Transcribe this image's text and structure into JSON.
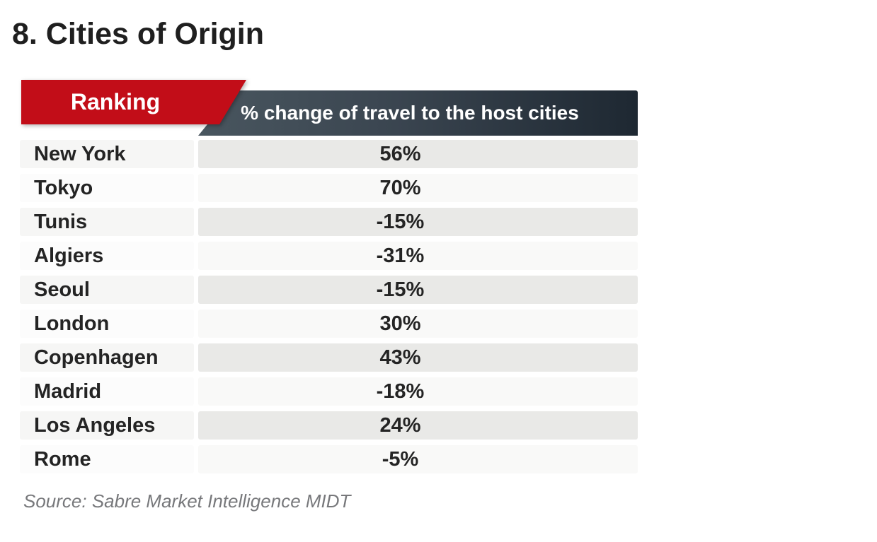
{
  "page": {
    "title": "8. Cities of Origin",
    "source": "Source: Sabre Market Intelligence MIDT"
  },
  "table": {
    "ranking_header": "Ranking",
    "value_header": "% change of travel to the host cities",
    "rows": [
      {
        "city": "New York",
        "value": "56%"
      },
      {
        "city": "Tokyo",
        "value": "70%"
      },
      {
        "city": "Tunis",
        "value": "-15%"
      },
      {
        "city": "Algiers",
        "value": "-31%"
      },
      {
        "city": "Seoul",
        "value": "-15%"
      },
      {
        "city": "London",
        "value": "30%"
      },
      {
        "city": "Copenhagen",
        "value": "43%"
      },
      {
        "city": "Madrid",
        "value": "-18%"
      },
      {
        "city": "Los Angeles",
        "value": "24%"
      },
      {
        "city": "Rome",
        "value": "-5%"
      }
    ]
  },
  "colors": {
    "accent_red": "#c20d18",
    "header_gradient_left": "#49565f",
    "header_gradient_right": "#1e2832",
    "row_odd_city_bg": "#f6f6f5",
    "row_odd_value_bg": "#e9e9e7",
    "row_even_city_bg": "#fcfcfc",
    "row_even_value_bg": "#f9f9f8",
    "text_dark": "#242424",
    "source_gray": "#77787b"
  },
  "chart_data": {
    "type": "table",
    "title": "8. Cities of Origin",
    "columns": [
      "Ranking",
      "% change of travel to the host cities"
    ],
    "categories": [
      "New York",
      "Tokyo",
      "Tunis",
      "Algiers",
      "Seoul",
      "London",
      "Copenhagen",
      "Madrid",
      "Los Angeles",
      "Rome"
    ],
    "values": [
      56,
      70,
      -15,
      -31,
      -15,
      30,
      43,
      -18,
      24,
      -5
    ],
    "value_unit": "%",
    "source": "Source: Sabre Market Intelligence MIDT"
  }
}
